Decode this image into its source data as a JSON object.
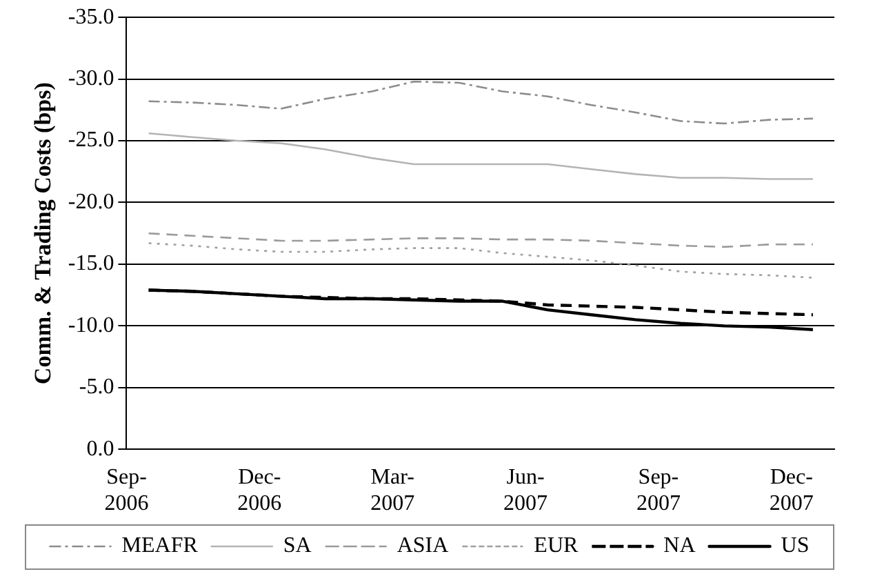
{
  "chart_data": {
    "type": "line",
    "ylabel": "Comm. & Trading Costs (bps)",
    "x": [
      "2006-09-16",
      "2006-10-16",
      "2006-11-16",
      "2006-12-16",
      "2007-01-16",
      "2007-02-16",
      "2007-03-16",
      "2007-04-16",
      "2007-05-16",
      "2007-06-16",
      "2007-07-16",
      "2007-08-16",
      "2007-09-16",
      "2007-10-16",
      "2007-11-16",
      "2007-12-16"
    ],
    "series": [
      {
        "name": "MEAFR",
        "color": "#8c8c8c",
        "line_style": "dashdot",
        "values": [
          -28.2,
          -28.1,
          -27.9,
          -27.6,
          -28.4,
          -29.0,
          -29.8,
          -29.7,
          -29.0,
          -28.6,
          -27.9,
          -27.3,
          -26.6,
          -26.4,
          -26.7,
          -26.8
        ]
      },
      {
        "name": "SA",
        "color": "#b4b4b4",
        "line_style": "solid",
        "values": [
          -25.6,
          -25.3,
          -25.0,
          -24.8,
          -24.3,
          -23.6,
          -23.1,
          -23.1,
          -23.1,
          -23.1,
          -22.7,
          -22.3,
          -22.0,
          -22.0,
          -21.9,
          -21.9
        ]
      },
      {
        "name": "ASIA",
        "color": "#9a9a9a",
        "line_style": "dashed",
        "values": [
          -17.5,
          -17.3,
          -17.1,
          -16.9,
          -16.9,
          -17.0,
          -17.1,
          -17.1,
          -17.0,
          -17.0,
          -16.9,
          -16.7,
          -16.5,
          -16.4,
          -16.6,
          -16.6
        ]
      },
      {
        "name": "EUR",
        "color": "#a0a0a0",
        "line_style": "dotted",
        "values": [
          -16.7,
          -16.5,
          -16.2,
          -16.0,
          -16.0,
          -16.2,
          -16.3,
          -16.3,
          -15.9,
          -15.6,
          -15.3,
          -14.9,
          -14.4,
          -14.2,
          -14.1,
          -13.9
        ]
      },
      {
        "name": "NA",
        "color": "#000000",
        "line_style": "dashed",
        "values": [
          -12.9,
          -12.8,
          -12.6,
          -12.4,
          -12.3,
          -12.2,
          -12.2,
          -12.1,
          -12.0,
          -11.7,
          -11.6,
          -11.5,
          -11.3,
          -11.1,
          -11.0,
          -10.9
        ]
      },
      {
        "name": "US",
        "color": "#000000",
        "line_style": "solid",
        "values": [
          -12.9,
          -12.8,
          -12.6,
          -12.4,
          -12.2,
          -12.2,
          -12.1,
          -12.0,
          -12.0,
          -11.3,
          -10.9,
          -10.5,
          -10.2,
          -10.0,
          -9.9,
          -9.7
        ]
      }
    ],
    "xlim": [
      "2006-09-01",
      "2007-12-31"
    ],
    "xticks": [
      {
        "value": "2006-09-01",
        "label": "Sep-2006"
      },
      {
        "value": "2006-12-01",
        "label": "Dec-2006"
      },
      {
        "value": "2007-03-01",
        "label": "Mar-2007"
      },
      {
        "value": "2007-06-01",
        "label": "Jun-2007"
      },
      {
        "value": "2007-09-01",
        "label": "Sep-2007"
      },
      {
        "value": "2007-12-01",
        "label": "Dec-2007"
      }
    ],
    "ylim": [
      0,
      -35
    ],
    "yticks": [
      {
        "value": 0,
        "label": "0.0"
      },
      {
        "value": -5,
        "label": "-5.0"
      },
      {
        "value": -10,
        "label": "-10.0"
      },
      {
        "value": -15,
        "label": "-15.0"
      },
      {
        "value": -20,
        "label": "-20.0"
      },
      {
        "value": -25,
        "label": "-25.0"
      },
      {
        "value": -30,
        "label": "-30.0"
      },
      {
        "value": -35,
        "label": "-35.0"
      }
    ],
    "grid": "y",
    "legend": "bottom",
    "marker": "none"
  }
}
